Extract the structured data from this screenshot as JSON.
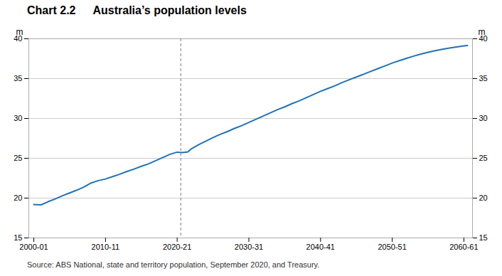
{
  "chart_data": {
    "type": "line",
    "title": "Chart 2.2",
    "subtitle": "Australia’s population levels",
    "source": "Source: ABS National, state and territory population, September 2020, and Treasury.",
    "ylabel": "m",
    "y2label": "m",
    "x": [
      2000,
      2001,
      2002,
      2003,
      2004,
      2005,
      2006,
      2007,
      2008,
      2009,
      2010,
      2011,
      2012,
      2013,
      2014,
      2015,
      2016,
      2017,
      2018,
      2019,
      2020,
      2020.75,
      2021.5,
      2022,
      2023,
      2024,
      2025,
      2026,
      2027,
      2028,
      2029,
      2030,
      2031,
      2032,
      2033,
      2034,
      2035,
      2036,
      2037,
      2038,
      2039,
      2040,
      2041,
      2042,
      2043,
      2044,
      2045,
      2046,
      2047,
      2048,
      2049,
      2050,
      2051,
      2052,
      2053,
      2054,
      2055,
      2056,
      2057,
      2058,
      2059,
      2060,
      2060.5
    ],
    "values": [
      19.2,
      19.15,
      19.55,
      19.9,
      20.3,
      20.65,
      21.0,
      21.4,
      21.9,
      22.2,
      22.4,
      22.7,
      23.0,
      23.35,
      23.65,
      24.0,
      24.3,
      24.7,
      25.1,
      25.5,
      25.77,
      25.72,
      25.8,
      26.2,
      26.7,
      27.15,
      27.6,
      28.0,
      28.35,
      28.75,
      29.1,
      29.5,
      29.9,
      30.3,
      30.7,
      31.1,
      31.45,
      31.85,
      32.2,
      32.6,
      33.0,
      33.4,
      33.75,
      34.1,
      34.5,
      34.85,
      35.2,
      35.55,
      35.9,
      36.25,
      36.6,
      36.95,
      37.25,
      37.55,
      37.82,
      38.08,
      38.3,
      38.5,
      38.68,
      38.84,
      38.97,
      39.1,
      39.15
    ],
    "color": "#1F72B8",
    "xlim": [
      1999.3,
      2061.2
    ],
    "xticks": [
      {
        "value": 2000,
        "label": "2000-01"
      },
      {
        "value": 2010,
        "label": "2010-11"
      },
      {
        "value": 2020,
        "label": "2020-21"
      },
      {
        "value": 2030,
        "label": "2030-31"
      },
      {
        "value": 2040,
        "label": "2040-41"
      },
      {
        "value": 2050,
        "label": "2050-51"
      },
      {
        "value": 2060,
        "label": "2060-61"
      }
    ],
    "ylim": [
      15,
      40
    ],
    "yticks": [
      15,
      20,
      25,
      30,
      35,
      40
    ],
    "y2lim": [
      15,
      40
    ],
    "y2ticks": [
      15,
      20,
      25,
      30,
      35,
      40
    ],
    "vline": {
      "x": 2020.5,
      "color": "#777777",
      "line_style": "dashed"
    },
    "grid": true
  }
}
